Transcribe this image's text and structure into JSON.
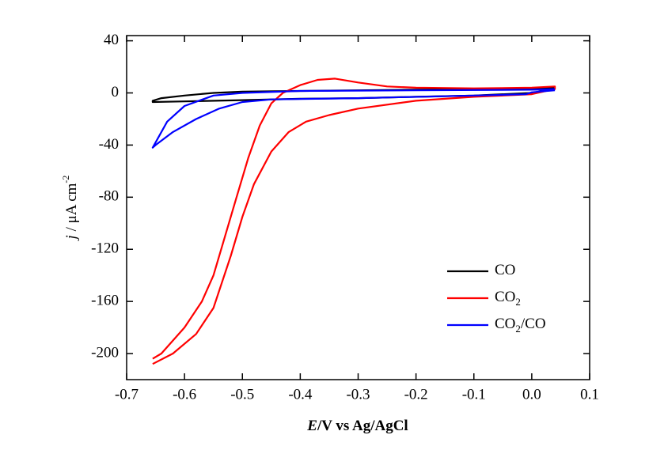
{
  "chart_data": {
    "type": "line",
    "xlabel": "E/V vs Ag/AgCl",
    "ylabel": "j / μA cm-2",
    "xlim": [
      -0.7,
      0.1
    ],
    "ylim": [
      -220,
      44
    ],
    "xticks": [
      -0.7,
      -0.6,
      -0.5,
      -0.4,
      -0.3,
      -0.2,
      -0.1,
      {
        "value": 0,
        "label": "0.0"
      },
      0.1
    ],
    "yticks": [
      40,
      0,
      -40,
      -80,
      -120,
      -160,
      -200
    ],
    "legend": "lower right",
    "series": [
      {
        "name": "CO",
        "color": "#000000",
        "x": [
          0.04,
          0.0,
          -0.1,
          -0.2,
          -0.3,
          -0.4,
          -0.5,
          -0.55,
          -0.6,
          -0.64,
          -0.655,
          -0.655,
          -0.6,
          -0.5,
          -0.4,
          -0.3,
          -0.2,
          -0.1,
          0.0,
          0.04
        ],
        "values": [
          4,
          3.5,
          3,
          2.5,
          2,
          1.5,
          1,
          0,
          -2,
          -4,
          -6,
          -7,
          -6.5,
          -5.5,
          -4.5,
          -4,
          -3,
          -2,
          0,
          3
        ]
      },
      {
        "name": "CO2",
        "color": "#ff0000",
        "x": [
          -0.655,
          -0.64,
          -0.6,
          -0.57,
          -0.55,
          -0.53,
          -0.51,
          -0.49,
          -0.47,
          -0.45,
          -0.43,
          -0.4,
          -0.37,
          -0.34,
          -0.3,
          -0.25,
          -0.2,
          -0.1,
          0.0,
          0.04,
          0.04,
          0.0,
          -0.1,
          -0.2,
          -0.3,
          -0.35,
          -0.39,
          -0.42,
          -0.45,
          -0.48,
          -0.5,
          -0.52,
          -0.55,
          -0.58,
          -0.62,
          -0.655
        ],
        "values": [
          -204,
          -200,
          -180,
          -160,
          -140,
          -110,
          -80,
          -50,
          -25,
          -8,
          0,
          6,
          10,
          11,
          8,
          5,
          4,
          3.5,
          4,
          5,
          3,
          -1,
          -3,
          -6,
          -12,
          -17,
          -22,
          -30,
          -45,
          -70,
          -95,
          -125,
          -165,
          -185,
          -200,
          -208
        ]
      },
      {
        "name": "CO2/CO",
        "color": "#0000ff",
        "x": [
          0.04,
          0.0,
          -0.2,
          -0.4,
          -0.5,
          -0.55,
          -0.6,
          -0.63,
          -0.655,
          -0.65,
          -0.62,
          -0.58,
          -0.54,
          -0.5,
          -0.45,
          -0.3,
          -0.1,
          -0.01,
          0.0,
          0.04
        ],
        "values": [
          3,
          2.5,
          2,
          1.5,
          0,
          -2,
          -10,
          -22,
          -42,
          -40,
          -30,
          -20,
          -12,
          -7,
          -5,
          -4,
          -2,
          -1,
          0.5,
          2
        ]
      }
    ]
  }
}
